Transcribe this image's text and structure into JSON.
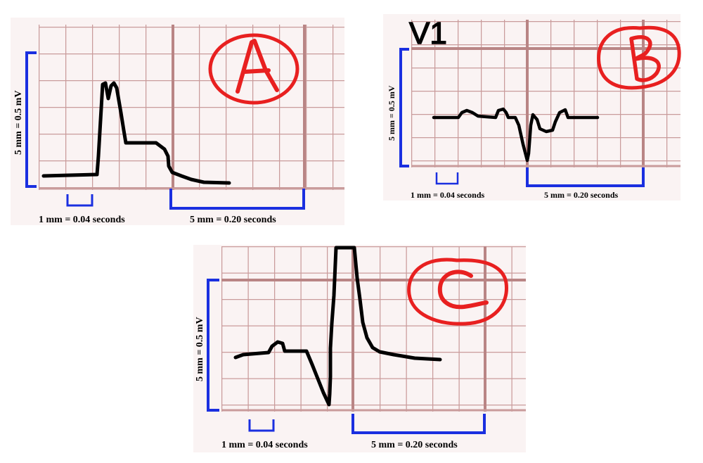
{
  "panels": [
    {
      "id": "A",
      "letter": "A",
      "lead_label": "",
      "voltage_calibration": "5 mm = 0.5 mV",
      "time_small": "1 mm = 0.04 seconds",
      "time_large": "5  mm = 0.20 seconds"
    },
    {
      "id": "B",
      "letter": "B",
      "lead_label": "V1",
      "voltage_calibration": "5 mm = 0.5 mV",
      "time_small": "1 mm = 0.04 seconds",
      "time_large": "5  mm = 0.20 seconds"
    },
    {
      "id": "C",
      "letter": "C",
      "lead_label": "",
      "voltage_calibration": "5 mm = 0.5 mV",
      "time_small": "1 mm = 0.04 seconds",
      "time_large": "5  mm = 0.20 seconds"
    }
  ],
  "colors": {
    "grid": "#c99b9b",
    "grid_major": "#b98585",
    "paper": "#faf3f3",
    "trace": "#000000",
    "calibration": "#1a2fe0",
    "annotation": "#e82020"
  }
}
